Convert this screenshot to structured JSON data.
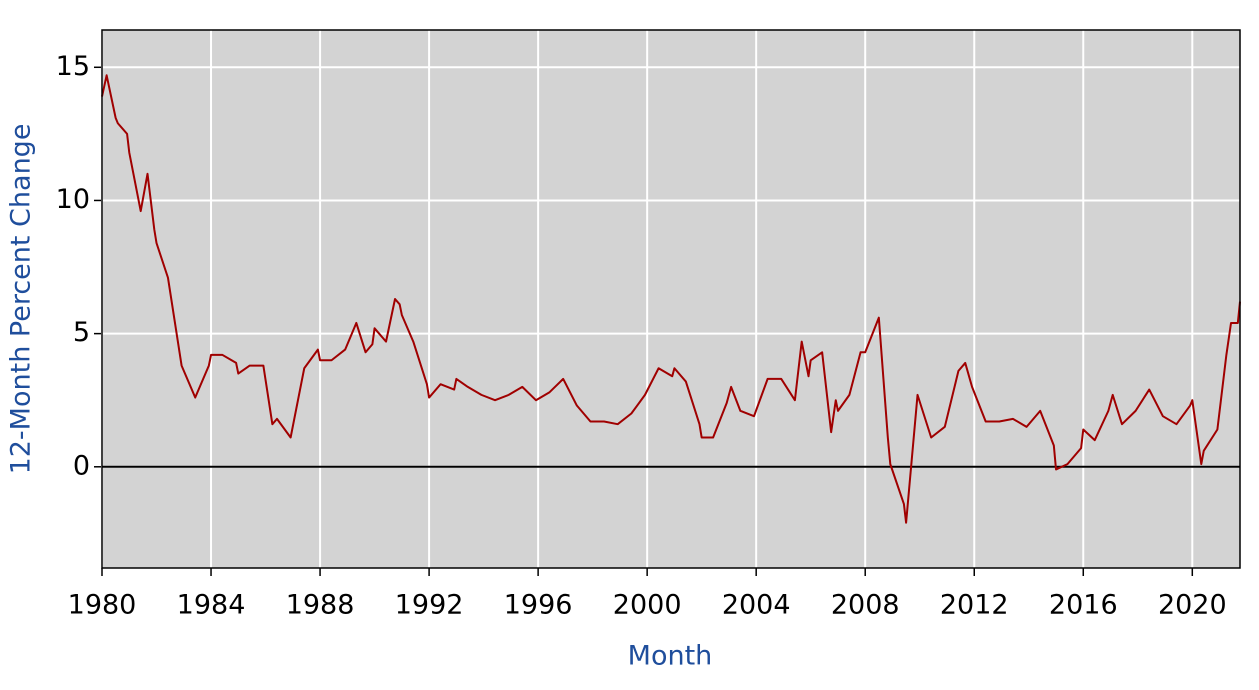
{
  "chart_data": {
    "type": "line",
    "xlabel": "Month",
    "ylabel": "12-Month Percent Change",
    "x": [
      1980.0,
      1980.17,
      1980.5,
      1980.58,
      1980.92,
      1981.0,
      1981.42,
      1981.67,
      1981.92,
      1982.0,
      1982.42,
      1982.92,
      1983.42,
      1983.92,
      1984.0,
      1984.42,
      1984.92,
      1985.0,
      1985.42,
      1985.92,
      1986.25,
      1986.42,
      1986.92,
      1987.42,
      1987.92,
      1988.0,
      1988.42,
      1988.92,
      1989.33,
      1989.67,
      1989.92,
      1990.0,
      1990.42,
      1990.75,
      1990.92,
      1991.0,
      1991.42,
      1991.92,
      1992.0,
      1992.42,
      1992.92,
      1993.0,
      1993.42,
      1993.92,
      1994.42,
      1994.92,
      1995.42,
      1995.92,
      1996.42,
      1996.92,
      1997.42,
      1997.92,
      1998.42,
      1998.92,
      1999.42,
      1999.92,
      2000.42,
      2000.92,
      2001.0,
      2001.42,
      2001.92,
      2002.0,
      2002.42,
      2002.92,
      2003.08,
      2003.42,
      2003.92,
      2004.42,
      2004.92,
      2005.42,
      2005.67,
      2005.92,
      2006.0,
      2006.42,
      2006.75,
      2006.92,
      2007.0,
      2007.42,
      2007.83,
      2008.0,
      2008.5,
      2008.83,
      2008.92,
      2009.42,
      2009.5,
      2009.92,
      2010.42,
      2010.92,
      2011.42,
      2011.67,
      2011.92,
      2012.42,
      2012.92,
      2013.42,
      2013.92,
      2014.42,
      2014.92,
      2015.0,
      2015.42,
      2015.92,
      2016.0,
      2016.42,
      2016.92,
      2017.08,
      2017.42,
      2017.92,
      2018.42,
      2018.92,
      2019.42,
      2019.92,
      2020.0,
      2020.33,
      2020.42,
      2020.92,
      2021.25,
      2021.42,
      2021.67,
      2021.75
    ],
    "series": [
      {
        "color": "#a00000",
        "values": [
          13.9,
          14.7,
          13.1,
          12.9,
          12.5,
          11.8,
          9.6,
          11.0,
          8.9,
          8.4,
          7.1,
          3.8,
          2.6,
          3.8,
          4.2,
          4.2,
          3.9,
          3.5,
          3.8,
          3.8,
          1.6,
          1.8,
          1.1,
          3.7,
          4.4,
          4.0,
          4.0,
          4.4,
          5.4,
          4.3,
          4.6,
          5.2,
          4.7,
          6.3,
          6.1,
          5.7,
          4.7,
          3.1,
          2.6,
          3.1,
          2.9,
          3.3,
          3.0,
          2.7,
          2.5,
          2.7,
          3.0,
          2.5,
          2.8,
          3.3,
          2.3,
          1.7,
          1.7,
          1.6,
          2.0,
          2.7,
          3.7,
          3.4,
          3.7,
          3.2,
          1.6,
          1.1,
          1.1,
          2.4,
          3.0,
          2.1,
          1.9,
          3.3,
          3.3,
          2.5,
          4.7,
          3.4,
          4.0,
          4.3,
          1.3,
          2.5,
          2.1,
          2.7,
          4.3,
          4.3,
          5.6,
          1.1,
          0.1,
          -1.4,
          -2.1,
          2.7,
          1.1,
          1.5,
          3.6,
          3.9,
          3.0,
          1.7,
          1.7,
          1.8,
          1.5,
          2.1,
          0.8,
          -0.1,
          0.1,
          0.7,
          1.4,
          1.0,
          2.1,
          2.7,
          1.6,
          2.1,
          2.9,
          1.9,
          1.6,
          2.3,
          2.5,
          0.1,
          0.6,
          1.4,
          4.2,
          5.4,
          5.4,
          6.2
        ]
      }
    ],
    "xlim": [
      1980,
      2021.75
    ],
    "xticks": [
      1980,
      1984,
      1988,
      1992,
      1996,
      2000,
      2004,
      2008,
      2012,
      2016,
      2020
    ],
    "ylim": [
      -3.8,
      16.4
    ],
    "yticks": [
      0,
      5,
      10,
      15
    ],
    "grid": true
  }
}
